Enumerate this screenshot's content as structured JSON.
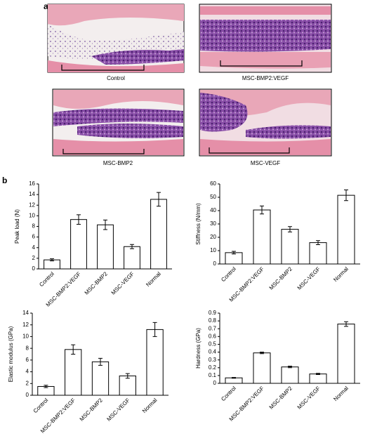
{
  "panel_labels": [
    "a",
    "b"
  ],
  "images": [
    {
      "caption": "Control"
    },
    {
      "caption": "MSC-BMP2:VEGF"
    },
    {
      "caption": "MSC-BMP2"
    },
    {
      "caption": "MSC-VEGF"
    }
  ],
  "chart_data": [
    {
      "type": "bar",
      "ylabel": "Peak load (N)",
      "categories": [
        "Control",
        "MSC-BMP2:VEGF",
        "MSC-BMP2",
        "MSC-VEGF",
        "Normal"
      ],
      "values": [
        1.7,
        9.3,
        8.3,
        4.2,
        13.1
      ],
      "errors": [
        0.2,
        0.9,
        0.9,
        0.4,
        1.3
      ],
      "color": "#ffffff",
      "ylim": [
        0,
        16
      ],
      "yticks": [
        0,
        2,
        4,
        6,
        8,
        10,
        12,
        14,
        16
      ]
    },
    {
      "type": "bar",
      "ylabel": "Stiffness (N/mm)",
      "categories": [
        "Control",
        "MSC-BMP2:VEGF",
        "MSC-BMP2",
        "MSC-VEGF",
        "Normal"
      ],
      "values": [
        8.5,
        40.5,
        26,
        16,
        51.5
      ],
      "errors": [
        1,
        3,
        2,
        1.5,
        4
      ],
      "color": "#ffffff",
      "ylim": [
        0,
        60
      ],
      "yticks": [
        0,
        10,
        20,
        30,
        40,
        50,
        60
      ]
    },
    {
      "type": "bar",
      "ylabel": "Elastic modulus (GPa)",
      "categories": [
        "Control",
        "MSC-BMP2:VEGF",
        "MSC-BMP2",
        "MSC-VEGF",
        "Normal"
      ],
      "values": [
        1.5,
        7.8,
        5.7,
        3.3,
        11.2
      ],
      "errors": [
        0.2,
        0.8,
        0.6,
        0.4,
        1.2
      ],
      "color": "#ffffff",
      "ylim": [
        0,
        14
      ],
      "yticks": [
        0,
        2,
        4,
        6,
        8,
        10,
        12,
        14
      ]
    },
    {
      "type": "bar",
      "ylabel": "Hardness (GPa)",
      "categories": [
        "Control",
        "MSC-BMP2:VEGF",
        "MSC-BMP2",
        "MSC-VEGF",
        "Normal"
      ],
      "values": [
        0.07,
        0.39,
        0.21,
        0.12,
        0.76
      ],
      "errors": [
        0.005,
        0.01,
        0.01,
        0.008,
        0.03
      ],
      "color": "#ffffff",
      "ylim": [
        0,
        0.9
      ],
      "yticks": [
        0,
        0.1,
        0.2,
        0.3,
        0.4,
        0.5,
        0.6,
        0.7,
        0.8,
        0.9
      ]
    }
  ]
}
